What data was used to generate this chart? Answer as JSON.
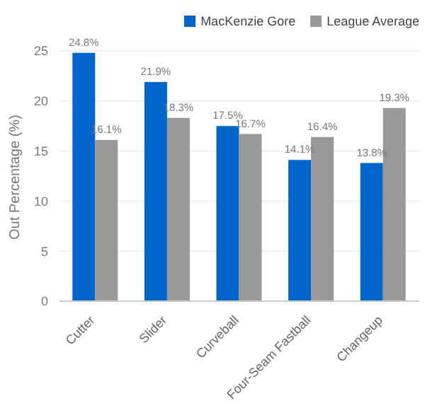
{
  "chart_data": {
    "type": "bar",
    "ylabel": "Out Percentage (%)",
    "categories": [
      "Cutter",
      "Slider",
      "Curveball",
      "Four-Seam Fastball",
      "Changeup"
    ],
    "series": [
      {
        "name": "MacKenzie Gore",
        "color": "#0066cc",
        "values": [
          24.8,
          21.9,
          17.5,
          14.1,
          13.8
        ],
        "value_labels": [
          "24.8%",
          "21.9%",
          "17.5%",
          "14.1%",
          "13.8%"
        ]
      },
      {
        "name": "League Average",
        "color": "#999999",
        "values": [
          16.1,
          18.3,
          16.7,
          16.4,
          19.3
        ],
        "value_labels": [
          "16.1%",
          "18.3%",
          "16.7%",
          "16.4%",
          "19.3%"
        ]
      }
    ],
    "ylim": [
      0,
      25
    ],
    "yticks": [
      0,
      5,
      10,
      15,
      20,
      25
    ],
    "grid": "y",
    "legend": "top right"
  }
}
